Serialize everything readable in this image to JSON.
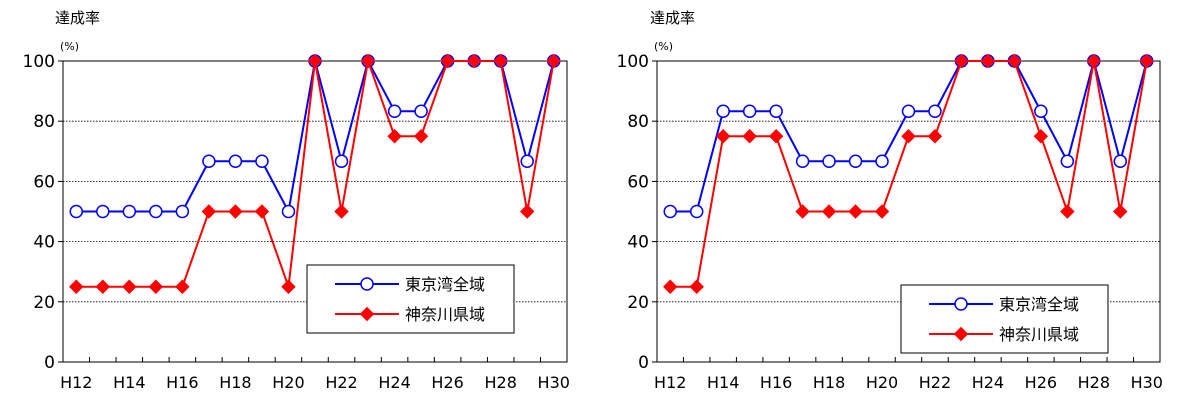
{
  "chart_data": [
    {
      "type": "line",
      "ylabel": "達成率",
      "yunit": "(%)",
      "ylim": [
        0,
        100
      ],
      "yticks": [
        0,
        20,
        40,
        60,
        80,
        100
      ],
      "x": [
        "H12",
        "H13",
        "H14",
        "H15",
        "H16",
        "H17",
        "H18",
        "H19",
        "H20",
        "H21",
        "H22",
        "H23",
        "H24",
        "H25",
        "H26",
        "H27",
        "H28",
        "H29",
        "H30"
      ],
      "xtick_labels": [
        "H12",
        "H14",
        "H16",
        "H18",
        "H20",
        "H22",
        "H24",
        "H26",
        "H28",
        "H30"
      ],
      "grid": true,
      "legend_position": "lower-right",
      "series": [
        {
          "name": "東京湾全域",
          "color": "#0000ff",
          "marker": "circle",
          "values": [
            50,
            50,
            50,
            50,
            50,
            66.7,
            66.7,
            66.7,
            50,
            100,
            66.7,
            100,
            83.3,
            83.3,
            100,
            100,
            100,
            66.7,
            100
          ]
        },
        {
          "name": "神奈川県域",
          "color": "#ff0000",
          "marker": "diamond",
          "values": [
            25,
            25,
            25,
            25,
            25,
            50,
            50,
            50,
            25,
            100,
            50,
            100,
            75,
            75,
            100,
            100,
            100,
            50,
            100
          ]
        }
      ]
    },
    {
      "type": "line",
      "ylabel": "達成率",
      "yunit": "(%)",
      "ylim": [
        0,
        100
      ],
      "yticks": [
        0,
        20,
        40,
        60,
        80,
        100
      ],
      "x": [
        "H12",
        "H13",
        "H14",
        "H15",
        "H16",
        "H17",
        "H18",
        "H19",
        "H20",
        "H21",
        "H22",
        "H23",
        "H24",
        "H25",
        "H26",
        "H27",
        "H28",
        "H29",
        "H30"
      ],
      "xtick_labels": [
        "H12",
        "H14",
        "H16",
        "H18",
        "H20",
        "H22",
        "H24",
        "H26",
        "H28",
        "H30"
      ],
      "grid": true,
      "legend_position": "lower-right",
      "series": [
        {
          "name": "東京湾全域",
          "color": "#0000ff",
          "marker": "circle",
          "values": [
            50,
            50,
            83.3,
            83.3,
            83.3,
            66.7,
            66.7,
            66.7,
            66.7,
            83.3,
            83.3,
            100,
            100,
            100,
            83.3,
            66.7,
            100,
            66.7,
            100
          ]
        },
        {
          "name": "神奈川県域",
          "color": "#ff0000",
          "marker": "diamond",
          "values": [
            25,
            25,
            75,
            75,
            75,
            50,
            50,
            50,
            50,
            75,
            75,
            100,
            100,
            100,
            75,
            50,
            100,
            50,
            100
          ]
        }
      ]
    }
  ]
}
